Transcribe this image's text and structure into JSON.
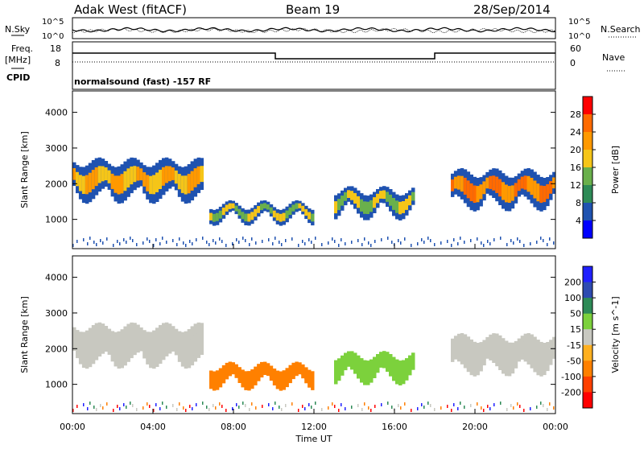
{
  "header": {
    "radar": "Adak West (fitACF)",
    "beam": "Beam 19",
    "date": "28/Sep/2014"
  },
  "noise_panel": {
    "left_label": "N.Sky",
    "right_label": "N.Search",
    "left_ticks": [
      "10^5",
      "10^0"
    ],
    "right_ticks": [
      "10^5",
      "10^0"
    ]
  },
  "freq_panel": {
    "left_label_1": "Freq.",
    "left_label_2": "[MHz]",
    "left_ticks": [
      "18",
      "8"
    ],
    "right_label": "Nave",
    "right_ticks": [
      "60",
      "0"
    ],
    "cpid_label": "CPID",
    "cpid_text": "normalsound (fast) -157 RF"
  },
  "colors": {
    "power_scale": [
      "#0000ff",
      "#1f52b0",
      "#2e8b57",
      "#6ab04c",
      "#f5c518",
      "#ff9900",
      "#ff6a00",
      "#ff0000"
    ],
    "velocity_scale": [
      "#2020ff",
      "#2e4bb0",
      "#2e8b57",
      "#7cd13c",
      "#c8c8c0",
      "#ffb020",
      "#ff8000",
      "#ff4000",
      "#ff0000"
    ]
  },
  "chart_data": [
    {
      "type": "heatmap",
      "title": "Power",
      "xlabel": "Time UT",
      "ylabel": "Slant Range [km]",
      "x_ticks": [
        "00:00",
        "04:00",
        "08:00",
        "12:00",
        "16:00",
        "20:00",
        "00:00"
      ],
      "xlim_hours": [
        0,
        24
      ],
      "y_ticks": [
        1000,
        2000,
        3000,
        4000
      ],
      "ylim": [
        180,
        4600
      ],
      "colorbar_label": "Power [dB]",
      "colorbar_ticks": [
        "4",
        "8",
        "12",
        "16",
        "20",
        "24",
        "28"
      ],
      "colorbar_range": [
        0,
        32
      ],
      "regions": [
        {
          "start_h": 0.0,
          "end_h": 6.5,
          "range_top_km": 2600,
          "range_bottom_km": 1500,
          "peak_db": 22
        },
        {
          "start_h": 6.8,
          "end_h": 12.0,
          "range_top_km": 1400,
          "range_bottom_km": 950,
          "peak_db": 18
        },
        {
          "start_h": 13.0,
          "end_h": 17.0,
          "range_top_km": 1800,
          "range_bottom_km": 1100,
          "peak_db": 16
        },
        {
          "start_h": 18.8,
          "end_h": 24.0,
          "range_top_km": 2300,
          "range_bottom_km": 1300,
          "peak_db": 28
        }
      ]
    },
    {
      "type": "heatmap",
      "title": "Velocity",
      "xlabel": "Time UT",
      "ylabel": "Slant Range [km]",
      "x_ticks": [
        "00:00",
        "04:00",
        "08:00",
        "12:00",
        "16:00",
        "20:00",
        "00:00"
      ],
      "xlim_hours": [
        0,
        24
      ],
      "y_ticks": [
        1000,
        2000,
        3000,
        4000
      ],
      "ylim": [
        180,
        4600
      ],
      "colorbar_label": "Velocity [m s^-1]",
      "colorbar_ticks": [
        "200",
        "100",
        "50",
        "15",
        "-15",
        "-50",
        "-100",
        "-200"
      ],
      "colorbar_range": [
        -250,
        250
      ],
      "regions": [
        {
          "start_h": 0.0,
          "end_h": 6.5,
          "range_top_km": 2600,
          "range_bottom_km": 1500,
          "velocity": 0
        },
        {
          "start_h": 6.8,
          "end_h": 12.0,
          "range_top_km": 1500,
          "range_bottom_km": 950,
          "velocity": -60
        },
        {
          "start_h": 13.0,
          "end_h": 17.0,
          "range_top_km": 1800,
          "range_bottom_km": 1100,
          "velocity": 40
        },
        {
          "start_h": 18.8,
          "end_h": 24.0,
          "range_top_km": 2300,
          "range_bottom_km": 1300,
          "velocity": 0
        }
      ]
    }
  ]
}
